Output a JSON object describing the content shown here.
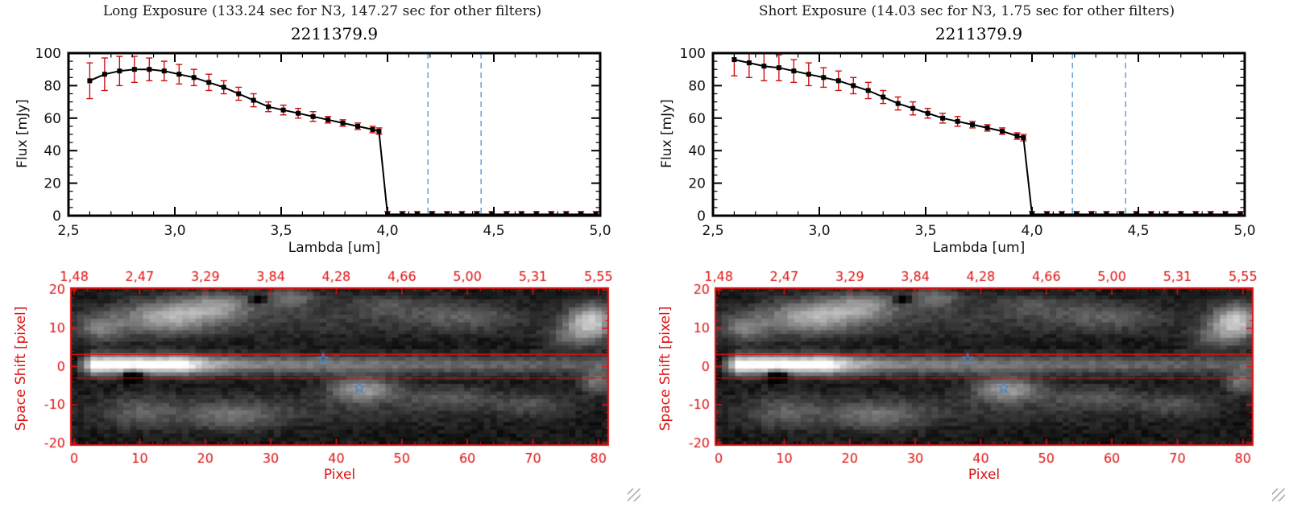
{
  "panels": [
    {
      "header": "Long Exposure (133.24 sec for N3, 147.27 sec for other filters)"
    },
    {
      "header": "Short Exposure (14.03 sec for N3, 1.75 sec for other filters)"
    }
  ],
  "chart_data": [
    {
      "type": "line",
      "panel": "long-exposure-spectrum",
      "title": "2211379.9",
      "xlabel": "Lambda [um]",
      "ylabel": "Flux [mJy]",
      "xlim": [
        2.5,
        5.0
      ],
      "ylim": [
        0,
        100
      ],
      "xtick_values": [
        2.5,
        3.0,
        3.5,
        4.0,
        4.5,
        5.0
      ],
      "xtick_labels": [
        "2,5",
        "3,0",
        "3,5",
        "4,0",
        "4,5",
        "5,0"
      ],
      "ytick_values": [
        0,
        20,
        40,
        60,
        80,
        100
      ],
      "x": [
        2.6,
        2.67,
        2.74,
        2.81,
        2.88,
        2.95,
        3.02,
        3.09,
        3.16,
        3.23,
        3.3,
        3.37,
        3.44,
        3.51,
        3.58,
        3.65,
        3.72,
        3.79,
        3.86,
        3.93,
        3.96,
        4.0,
        4.07,
        4.14,
        4.21,
        4.28,
        4.35,
        4.42,
        4.49,
        4.56,
        4.63,
        4.7,
        4.77,
        4.84,
        4.91,
        4.98
      ],
      "flux": [
        83,
        87,
        89,
        90,
        90,
        89,
        87,
        85,
        82,
        79,
        75,
        71,
        67,
        65,
        63,
        61,
        59,
        57,
        55,
        53,
        52,
        0.8,
        0.8,
        0.8,
        0.8,
        0.8,
        0.8,
        0.8,
        0.8,
        0.8,
        0.8,
        0.8,
        0.8,
        0.8,
        0.8,
        0.8
      ],
      "err": [
        11,
        10,
        9,
        8,
        7,
        6,
        6,
        5,
        5,
        4,
        4,
        4,
        3,
        3,
        3,
        3,
        2,
        2,
        2,
        2,
        2,
        1.8,
        1.8,
        1.8,
        1.8,
        1.8,
        1.8,
        1.8,
        1.8,
        1.8,
        1.8,
        1.8,
        1.8,
        1.8,
        1.8,
        1.8
      ],
      "vlines": [
        4.19,
        4.44
      ],
      "colors": {
        "line": "#000000",
        "marker": "#000000",
        "error": "#cc1111",
        "vline": "#5b9bd5"
      }
    },
    {
      "type": "line",
      "panel": "short-exposure-spectrum",
      "title": "2211379.9",
      "xlabel": "Lambda [um]",
      "ylabel": "Flux [mJy]",
      "xlim": [
        2.5,
        5.0
      ],
      "ylim": [
        0,
        100
      ],
      "xtick_values": [
        2.5,
        3.0,
        3.5,
        4.0,
        4.5,
        5.0
      ],
      "xtick_labels": [
        "2,5",
        "3,0",
        "3,5",
        "4,0",
        "4,5",
        "5,0"
      ],
      "ytick_values": [
        0,
        20,
        40,
        60,
        80,
        100
      ],
      "x": [
        2.6,
        2.67,
        2.74,
        2.81,
        2.88,
        2.95,
        3.02,
        3.09,
        3.16,
        3.23,
        3.3,
        3.37,
        3.44,
        3.51,
        3.58,
        3.65,
        3.72,
        3.79,
        3.86,
        3.93,
        3.96,
        4.0,
        4.07,
        4.14,
        4.21,
        4.28,
        4.35,
        4.42,
        4.49,
        4.56,
        4.63,
        4.7,
        4.77,
        4.84,
        4.91,
        4.98
      ],
      "flux": [
        96,
        94,
        92,
        91,
        89,
        87,
        85,
        83,
        80,
        77,
        73,
        69,
        66,
        63,
        60,
        58,
        56,
        54,
        52,
        49,
        48,
        0.8,
        0.8,
        0.8,
        0.8,
        0.8,
        0.8,
        0.8,
        0.8,
        0.8,
        0.8,
        0.8,
        0.8,
        0.8,
        0.8,
        0.8
      ],
      "err": [
        10,
        9,
        9,
        8,
        7,
        7,
        6,
        6,
        5,
        5,
        4,
        4,
        4,
        3,
        3,
        3,
        2,
        2,
        2,
        2,
        2,
        1.8,
        1.8,
        1.8,
        1.8,
        1.8,
        1.8,
        1.8,
        1.8,
        1.8,
        1.8,
        1.8,
        1.8,
        1.8,
        1.8,
        1.8
      ],
      "vlines": [
        4.19,
        4.44
      ],
      "colors": {
        "line": "#000000",
        "marker": "#000000",
        "error": "#cc1111",
        "vline": "#5b9bd5"
      }
    },
    {
      "type": "heatmap",
      "panel": "2d-spectral-image",
      "xlabel": "Pixel",
      "ylabel": "Space Shift [pixel]",
      "xlim": [
        0,
        82
      ],
      "ylim": [
        -20.5,
        20.5
      ],
      "xtick_values": [
        0,
        10,
        20,
        30,
        40,
        50,
        60,
        70,
        80
      ],
      "ytick_values": [
        -20,
        -10,
        0,
        10,
        20
      ],
      "top_tick_labels": [
        "1,48",
        "2,47",
        "3,29",
        "3,84",
        "4,28",
        "4,66",
        "5,00",
        "5,31",
        "5,55"
      ],
      "top_tick_positions": [
        0,
        10,
        20,
        30,
        40,
        50,
        60,
        70,
        80
      ],
      "aperture_lines": [
        3.2,
        -3.0
      ],
      "stars": [
        [
          38,
          2
        ],
        [
          43.5,
          -5.5
        ]
      ],
      "frame_color": "#dd1111",
      "star_color": "#4d84c4",
      "trace": {
        "y_center": 0.5,
        "sigma": 1.7
      },
      "blobs": [
        [
          14,
          13,
          5,
          3,
          0.5
        ],
        [
          4,
          10,
          2.5,
          2.5,
          0.32
        ],
        [
          22,
          16,
          4,
          2.5,
          0.4
        ],
        [
          33,
          18,
          3,
          2,
          0.3
        ],
        [
          10,
          -12,
          4,
          3,
          0.22
        ],
        [
          24,
          -13,
          5,
          2.5,
          0.28
        ],
        [
          44,
          -6,
          3.5,
          2.2,
          0.5
        ],
        [
          57,
          -8,
          5,
          2,
          0.22
        ],
        [
          70,
          -10,
          4,
          2,
          0.2
        ],
        [
          79,
          12,
          2.5,
          3,
          0.68
        ],
        [
          80,
          -4,
          2,
          2,
          0.35
        ],
        [
          60,
          13,
          6,
          2.5,
          0.22
        ],
        [
          48,
          16,
          5,
          2,
          0.18
        ],
        [
          30,
          12,
          22,
          3,
          0.12
        ],
        [
          35,
          -11,
          22,
          3,
          0.1
        ],
        [
          76,
          8,
          3,
          2.5,
          0.26
        ]
      ],
      "dark_spots": [
        [
          9,
          -2.5,
          0.9,
          0.9,
          0.9
        ],
        [
          28,
          17.5,
          0.6,
          0.6,
          0.9
        ]
      ],
      "seed": 42
    }
  ]
}
